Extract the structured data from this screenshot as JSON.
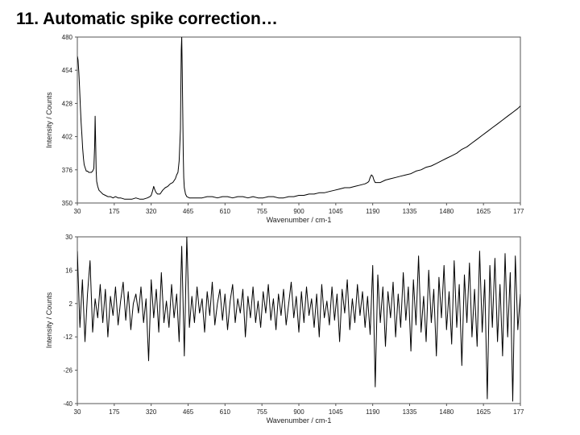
{
  "slide": {
    "title": "11. Automatic spike correction…"
  },
  "chart_data": [
    {
      "type": "line",
      "title": "",
      "xlabel": "Wavenumber / cm-1",
      "ylabel": "Intensity / Counts",
      "xlim": [
        30,
        1770
      ],
      "ylim": [
        350,
        480
      ],
      "xticks": [
        30,
        175,
        320,
        465,
        610,
        755,
        900,
        1045,
        1190,
        1335,
        1480,
        1625,
        1770
      ],
      "yticks": [
        350,
        376,
        402,
        428,
        454,
        480
      ],
      "grid": false,
      "series": [
        {
          "x": [
            30,
            33,
            36,
            39,
            42,
            45,
            48,
            51,
            54,
            57,
            60,
            65,
            70,
            75,
            80,
            85,
            90,
            95,
            98,
            100,
            102,
            104,
            106,
            110,
            115,
            120,
            130,
            140,
            150,
            160,
            170,
            180,
            190,
            200,
            215,
            230,
            245,
            260,
            275,
            290,
            305,
            315,
            320,
            325,
            330,
            335,
            340,
            345,
            355,
            365,
            375,
            385,
            395,
            405,
            415,
            420,
            425,
            430,
            435,
            438,
            440,
            442,
            444,
            446,
            448,
            450,
            455,
            460,
            470,
            480,
            500,
            520,
            540,
            560,
            580,
            600,
            620,
            640,
            660,
            680,
            700,
            720,
            740,
            760,
            780,
            800,
            820,
            840,
            860,
            880,
            900,
            920,
            940,
            960,
            980,
            1000,
            1020,
            1040,
            1060,
            1080,
            1100,
            1120,
            1140,
            1160,
            1170,
            1175,
            1180,
            1185,
            1190,
            1195,
            1200,
            1210,
            1220,
            1240,
            1260,
            1280,
            1300,
            1320,
            1340,
            1360,
            1380,
            1400,
            1420,
            1440,
            1460,
            1480,
            1500,
            1520,
            1540,
            1560,
            1580,
            1600,
            1620,
            1640,
            1660,
            1680,
            1700,
            1720,
            1740,
            1760,
            1770
          ],
          "y": [
            465,
            462,
            452,
            440,
            425,
            413,
            403,
            393,
            385,
            380,
            378,
            375,
            375,
            374,
            374,
            374,
            375,
            377,
            395,
            418,
            396,
            375,
            367,
            363,
            360,
            359,
            357,
            356,
            355,
            355,
            354,
            355,
            354,
            354,
            353,
            353,
            353,
            354,
            353,
            353,
            354,
            355,
            356,
            359,
            363,
            360,
            358,
            357,
            357,
            360,
            362,
            363,
            365,
            366,
            369,
            372,
            374,
            383,
            408,
            470,
            480,
            455,
            420,
            388,
            370,
            362,
            357,
            355,
            354,
            354,
            354,
            354,
            355,
            355,
            354,
            355,
            355,
            354,
            355,
            355,
            354,
            355,
            354,
            354,
            355,
            355,
            354,
            354,
            355,
            355,
            356,
            356,
            357,
            357,
            358,
            358,
            359,
            360,
            361,
            362,
            362,
            363,
            364,
            365,
            366,
            367,
            370,
            372,
            371,
            368,
            366,
            366,
            366,
            368,
            369,
            370,
            371,
            372,
            373,
            375,
            376,
            378,
            379,
            381,
            383,
            385,
            387,
            389,
            392,
            394,
            397,
            400,
            403,
            406,
            409,
            412,
            415,
            418,
            421,
            424,
            426
          ]
        }
      ]
    },
    {
      "type": "line",
      "title": "",
      "xlabel": "Wavenumber / cm-1",
      "ylabel": "Intensity / Counts",
      "xlim": [
        30,
        1770
      ],
      "ylim": [
        -40,
        30
      ],
      "xticks": [
        30,
        175,
        320,
        465,
        610,
        755,
        900,
        1045,
        1190,
        1335,
        1480,
        1625,
        1770
      ],
      "yticks": [
        -40,
        -26,
        -12,
        2,
        16,
        30
      ],
      "grid": false,
      "series": [
        {
          "x": [
            30,
            40,
            50,
            60,
            70,
            80,
            90,
            100,
            110,
            120,
            130,
            140,
            150,
            160,
            170,
            180,
            190,
            200,
            210,
            220,
            230,
            240,
            250,
            260,
            270,
            280,
            290,
            300,
            310,
            320,
            330,
            340,
            350,
            360,
            370,
            380,
            390,
            400,
            410,
            420,
            430,
            440,
            450,
            460,
            470,
            480,
            490,
            500,
            510,
            520,
            530,
            540,
            550,
            560,
            570,
            580,
            590,
            600,
            610,
            620,
            630,
            640,
            650,
            660,
            670,
            680,
            690,
            700,
            710,
            720,
            730,
            740,
            750,
            760,
            770,
            780,
            790,
            800,
            810,
            820,
            830,
            840,
            850,
            860,
            870,
            880,
            890,
            900,
            910,
            920,
            930,
            940,
            950,
            960,
            970,
            980,
            990,
            1000,
            1010,
            1020,
            1030,
            1040,
            1050,
            1060,
            1070,
            1080,
            1090,
            1100,
            1110,
            1120,
            1130,
            1140,
            1150,
            1160,
            1170,
            1180,
            1190,
            1200,
            1210,
            1220,
            1230,
            1240,
            1250,
            1260,
            1270,
            1280,
            1290,
            1300,
            1310,
            1320,
            1330,
            1340,
            1350,
            1360,
            1370,
            1380,
            1390,
            1400,
            1410,
            1420,
            1430,
            1440,
            1450,
            1460,
            1470,
            1480,
            1490,
            1500,
            1510,
            1520,
            1530,
            1540,
            1550,
            1560,
            1570,
            1580,
            1590,
            1600,
            1610,
            1620,
            1630,
            1640,
            1650,
            1660,
            1670,
            1680,
            1690,
            1700,
            1710,
            1720,
            1730,
            1740,
            1750,
            1760,
            1770
          ],
          "y": [
            24,
            -8,
            12,
            -14,
            6,
            20,
            -10,
            4,
            -4,
            10,
            -6,
            8,
            -12,
            5,
            -3,
            9,
            -7,
            3,
            11,
            -5,
            7,
            -9,
            2,
            6,
            -2,
            9,
            -6,
            4,
            -22,
            12,
            -4,
            8,
            -10,
            15,
            -6,
            3,
            -8,
            10,
            -4,
            6,
            -14,
            26,
            -20,
            30,
            -8,
            5,
            -6,
            9,
            -2,
            4,
            -10,
            7,
            -3,
            11,
            -7,
            2,
            8,
            -5,
            6,
            -9,
            3,
            10,
            -6,
            4,
            -2,
            8,
            -12,
            5,
            -4,
            9,
            -6,
            3,
            -8,
            7,
            -2,
            10,
            -5,
            4,
            -9,
            6,
            -3,
            8,
            -7,
            2,
            11,
            -4,
            5,
            -10,
            7,
            -6,
            9,
            -3,
            4,
            -8,
            6,
            -12,
            10,
            -4,
            3,
            -7,
            9,
            -5,
            6,
            -14,
            8,
            -2,
            12,
            -9,
            4,
            -6,
            10,
            -3,
            7,
            -8,
            5,
            -11,
            18,
            -33,
            14,
            -6,
            9,
            -16,
            7,
            -4,
            11,
            -12,
            6,
            -8,
            15,
            -5,
            9,
            -18,
            12,
            -7,
            22,
            -10,
            5,
            -14,
            16,
            -6,
            8,
            -20,
            13,
            -4,
            18,
            -9,
            7,
            -15,
            20,
            -8,
            10,
            -24,
            14,
            -6,
            19,
            -12,
            8,
            -16,
            24,
            -10,
            12,
            -38,
            18,
            -8,
            21,
            -14,
            10,
            -20,
            23,
            -12,
            15,
            -39,
            22,
            -9,
            6
          ]
        }
      ]
    }
  ]
}
